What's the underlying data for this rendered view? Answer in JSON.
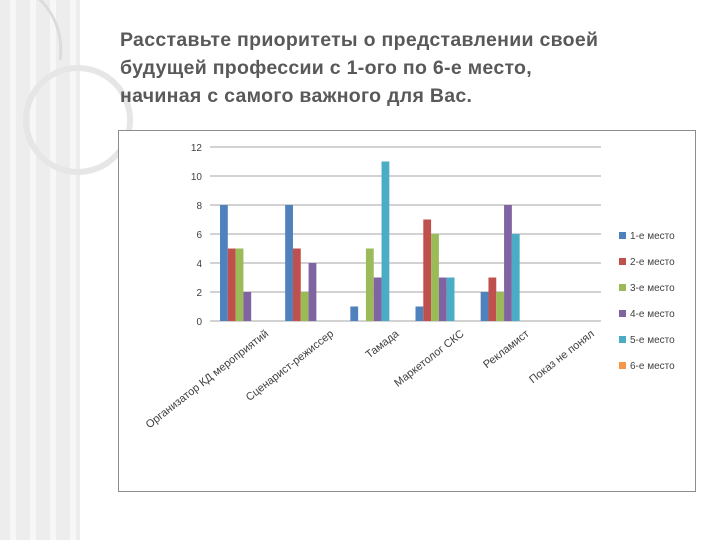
{
  "slide": {
    "title_lines": [
      "Расставьте приоритеты о представлении своей",
      "будущей профессии с 1-ого по 6-е место,",
      "начиная с самого важного для Вас."
    ]
  },
  "chart_data": {
    "type": "bar",
    "title": "",
    "xlabel": "",
    "ylabel": "",
    "ylim": [
      0,
      12
    ],
    "yticks": [
      0,
      2,
      4,
      6,
      8,
      10,
      12
    ],
    "grid": true,
    "legend_position": "right",
    "categories": [
      "Организатор КД мероприятий",
      "Сценарист-режиссер",
      "Тамада",
      "Маркетолог СКС",
      "Рекламист",
      "Показ не понял"
    ],
    "series": [
      {
        "name": "1-е место",
        "color": "#4f81bd",
        "values": [
          8,
          8,
          1,
          1,
          2,
          0
        ]
      },
      {
        "name": "2-е место",
        "color": "#c0504d",
        "values": [
          5,
          5,
          0,
          7,
          3,
          0
        ]
      },
      {
        "name": "3-е место",
        "color": "#9bbb59",
        "values": [
          5,
          2,
          5,
          6,
          2,
          0
        ]
      },
      {
        "name": "4-е место",
        "color": "#8064a2",
        "values": [
          2,
          4,
          3,
          3,
          8,
          0
        ]
      },
      {
        "name": "5-е место",
        "color": "#4bacc6",
        "values": [
          0,
          0,
          11,
          3,
          6,
          0
        ]
      },
      {
        "name": "6-е место",
        "color": "#f79646",
        "values": [
          0,
          0,
          0,
          0,
          0,
          0
        ]
      }
    ]
  }
}
